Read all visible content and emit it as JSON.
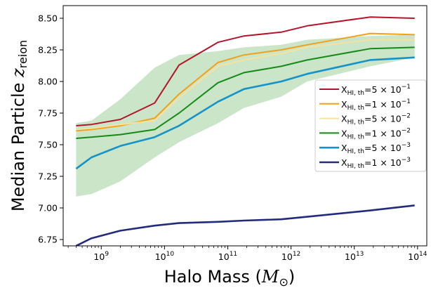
{
  "chart_data": {
    "type": "line",
    "xlabel": "Halo Mass (",
    "xlabel_symbol": "M",
    "xlabel_sub": "⊙",
    "xlabel_close": ")",
    "ylabel": "Median Particle ",
    "ylabel_symbol": "z",
    "ylabel_sub": "reion",
    "xscale": "log",
    "xlim": [
      250000000,
      140000000000000
    ],
    "ylim": [
      6.7,
      8.6
    ],
    "x_ticks": [
      {
        "value": 1000000000,
        "base": "10",
        "exp": "9"
      },
      {
        "value": 10000000000,
        "base": "10",
        "exp": "10"
      },
      {
        "value": 100000000000,
        "base": "10",
        "exp": "11"
      },
      {
        "value": 1000000000000,
        "base": "10",
        "exp": "12"
      },
      {
        "value": 10000000000000,
        "base": "10",
        "exp": "13"
      },
      {
        "value": 100000000000000,
        "base": "10",
        "exp": "14"
      }
    ],
    "y_ticks": [
      {
        "value": 6.75,
        "label": "6.75"
      },
      {
        "value": 7.0,
        "label": "7.00"
      },
      {
        "value": 7.25,
        "label": "7.25"
      },
      {
        "value": 7.5,
        "label": "7.50"
      },
      {
        "value": 7.75,
        "label": "7.75"
      },
      {
        "value": 8.0,
        "label": "8.00"
      },
      {
        "value": 8.25,
        "label": "8.25"
      },
      {
        "value": 8.5,
        "label": "8.50"
      }
    ],
    "legend_position": "right",
    "x": [
      400000000,
      700000000,
      2000000000,
      7000000000,
      17000000000,
      70000000000,
      180000000000,
      700000000000,
      1800000000000,
      18000000000000,
      90000000000000
    ],
    "band": {
      "color": "#cbe5c9",
      "lower": [
        7.09,
        7.11,
        7.21,
        7.4,
        7.52,
        7.67,
        7.79,
        7.88,
        8.0,
        8.12,
        8.19
      ],
      "upper": [
        7.67,
        7.69,
        7.86,
        8.11,
        8.21,
        8.24,
        8.27,
        8.29,
        8.33,
        8.36,
        8.37
      ]
    },
    "series": [
      {
        "name_base": "X",
        "name_sub": "HI, th",
        "name_val": "=5 × 10",
        "name_exp": "−1",
        "color": "#b5152b",
        "width": 2.0,
        "values": [
          7.65,
          7.66,
          7.7,
          7.83,
          8.13,
          8.31,
          8.36,
          8.39,
          8.44,
          8.51,
          8.5
        ]
      },
      {
        "name_base": "X",
        "name_sub": "HI, th",
        "name_val": "=1 × 10",
        "name_exp": "−1",
        "color": "#f1a01a",
        "width": 2.0,
        "values": [
          7.61,
          7.62,
          7.65,
          7.71,
          7.9,
          8.15,
          8.21,
          8.25,
          8.29,
          8.38,
          8.37
        ]
      },
      {
        "name_base": "X",
        "name_sub": "HI, th",
        "name_val": "=5 × 10",
        "name_exp": "−2",
        "color": "#f4e2a0",
        "width": 2.0,
        "values": [
          7.62,
          7.63,
          7.66,
          7.69,
          7.87,
          8.12,
          8.17,
          8.22,
          8.27,
          8.33,
          8.33
        ]
      },
      {
        "name_base": "X",
        "name_sub": "HI, th",
        "name_val": "=1 × 10",
        "name_exp": "−2",
        "color": "#158a16",
        "width": 2.0,
        "values": [
          7.55,
          7.56,
          7.58,
          7.62,
          7.75,
          7.99,
          8.07,
          8.12,
          8.17,
          8.26,
          8.27
        ]
      },
      {
        "name_base": "X",
        "name_sub": "HI, th",
        "name_val": "=5 × 10",
        "name_exp": "−3",
        "color": "#1593c8",
        "width": 2.6,
        "values": [
          7.31,
          7.4,
          7.49,
          7.56,
          7.65,
          7.84,
          7.94,
          8.0,
          8.06,
          8.17,
          8.19
        ]
      },
      {
        "name_base": "X",
        "name_sub": "HI, th",
        "name_val": "=1 × 10",
        "name_exp": "−3",
        "color": "#232b7d",
        "width": 2.6,
        "values": [
          6.7,
          6.76,
          6.82,
          6.86,
          6.88,
          6.89,
          6.9,
          6.91,
          6.93,
          6.98,
          7.02
        ]
      }
    ]
  }
}
